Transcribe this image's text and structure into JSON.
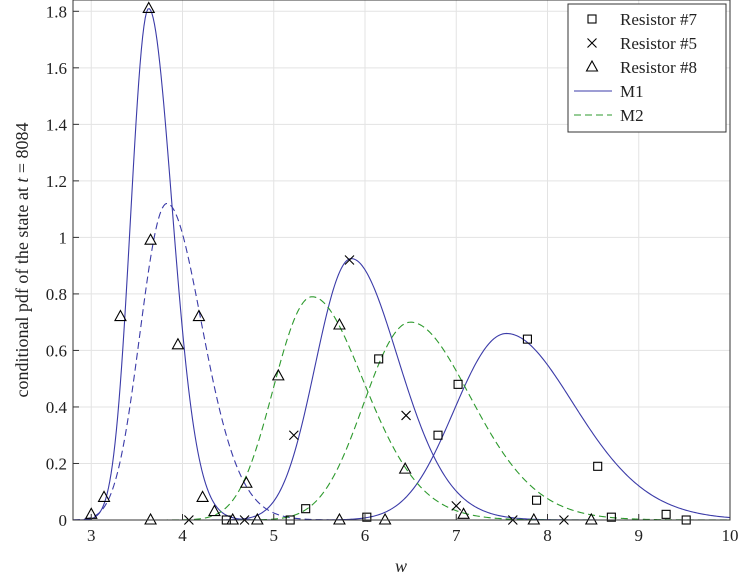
{
  "chart_data": {
    "type": "line",
    "title": "",
    "xlabel": "w",
    "ylabel_prefix": "conditional pdf of the state at ",
    "ylabel_var": "t",
    "ylabel_suffix": " = 8084",
    "xlim": [
      2.8,
      10
    ],
    "ylim": [
      0,
      1.84
    ],
    "x_ticks": [
      3,
      4,
      5,
      6,
      7,
      8,
      9,
      10
    ],
    "x_tick_labels": [
      "3",
      "4",
      "5",
      "6",
      "7",
      "8",
      "9",
      "10"
    ],
    "y_ticks": [
      0,
      0.2,
      0.4,
      0.6,
      0.8,
      1,
      1.2,
      1.4,
      1.6,
      1.8
    ],
    "y_tick_labels": [
      "0",
      "0.2",
      "0.4",
      "0.6",
      "0.8",
      "1",
      "1.2",
      "1.4",
      "1.6",
      "1.8"
    ],
    "grid": true,
    "legend_position": "top-right",
    "legend": [
      {
        "label": "Resistor #7",
        "kind": "marker",
        "marker": "square",
        "color": "#000000"
      },
      {
        "label": "Resistor #5",
        "kind": "marker",
        "marker": "x",
        "color": "#000000"
      },
      {
        "label": "Resistor #8",
        "kind": "marker",
        "marker": "triangle",
        "color": "#000000"
      },
      {
        "label": "M1",
        "kind": "line",
        "dash": "solid",
        "color": "#3b3ba8"
      },
      {
        "label": "M2",
        "kind": "line",
        "dash": "dashed",
        "color": "#2e9a2e"
      }
    ],
    "series": [
      {
        "name": "Resistor #7",
        "marker": "square",
        "color": "#000000",
        "points": [
          [
            4.48,
            0.0
          ],
          [
            5.18,
            0.0
          ],
          [
            5.35,
            0.04
          ],
          [
            6.02,
            0.01
          ],
          [
            6.15,
            0.57
          ],
          [
            6.8,
            0.3
          ],
          [
            7.02,
            0.48
          ],
          [
            7.78,
            0.64
          ],
          [
            7.88,
            0.07
          ],
          [
            8.55,
            0.19
          ],
          [
            8.7,
            0.01
          ],
          [
            9.3,
            0.02
          ],
          [
            9.52,
            0.0
          ]
        ]
      },
      {
        "name": "Resistor #5",
        "marker": "x",
        "color": "#000000",
        "points": [
          [
            4.07,
            0.0
          ],
          [
            4.68,
            0.0
          ],
          [
            5.22,
            0.3
          ],
          [
            5.83,
            0.92
          ],
          [
            6.45,
            0.37
          ],
          [
            7.0,
            0.05
          ],
          [
            7.62,
            0.0
          ],
          [
            8.18,
            0.0
          ]
        ]
      },
      {
        "name": "Resistor #8",
        "marker": "triangle",
        "color": "#000000",
        "points": [
          [
            3.0,
            0.02
          ],
          [
            3.14,
            0.08
          ],
          [
            3.32,
            0.72
          ],
          [
            3.63,
            1.81
          ],
          [
            3.65,
            0.99
          ],
          [
            3.65,
            0.0
          ],
          [
            3.95,
            0.62
          ],
          [
            4.18,
            0.72
          ],
          [
            4.22,
            0.08
          ],
          [
            4.35,
            0.03
          ],
          [
            4.55,
            0.0
          ],
          [
            4.7,
            0.13
          ],
          [
            4.82,
            0.0
          ],
          [
            5.05,
            0.51
          ],
          [
            5.72,
            0.69
          ],
          [
            5.72,
            0.0
          ],
          [
            6.22,
            0.0
          ],
          [
            6.44,
            0.18
          ],
          [
            7.08,
            0.02
          ],
          [
            7.85,
            0.0
          ],
          [
            8.48,
            0.0
          ]
        ]
      }
    ],
    "curves": [
      {
        "name": "M1",
        "dash": "solid",
        "color": "#3b3ba8",
        "shape": "lognormal",
        "peak_x": 3.63,
        "peak_y": 1.81,
        "sigma_left": 0.2,
        "sigma_right": 0.25
      },
      {
        "name": "M1",
        "dash": "solid",
        "color": "#3b3ba8",
        "shape": "lognormal",
        "peak_x": 5.85,
        "peak_y": 0.925,
        "sigma_left": 0.4,
        "sigma_right": 0.5
      },
      {
        "name": "M1",
        "dash": "solid",
        "color": "#3b3ba8",
        "shape": "lognormal",
        "peak_x": 7.55,
        "peak_y": 0.66,
        "sigma_left": 0.58,
        "sigma_right": 0.72
      },
      {
        "name": "M2",
        "dash": "dashed",
        "color": "#3b3ba8",
        "shape": "lognormal",
        "peak_x": 3.83,
        "peak_y": 1.12,
        "sigma_left": 0.3,
        "sigma_right": 0.37
      },
      {
        "name": "M2",
        "dash": "dashed",
        "color": "#2e9a2e",
        "shape": "lognormal",
        "peak_x": 5.42,
        "peak_y": 0.79,
        "sigma_left": 0.43,
        "sigma_right": 0.55
      },
      {
        "name": "M2",
        "dash": "dashed",
        "color": "#2e9a2e",
        "shape": "lognormal",
        "peak_x": 6.5,
        "peak_y": 0.7,
        "sigma_left": 0.52,
        "sigma_right": 0.64
      }
    ]
  }
}
